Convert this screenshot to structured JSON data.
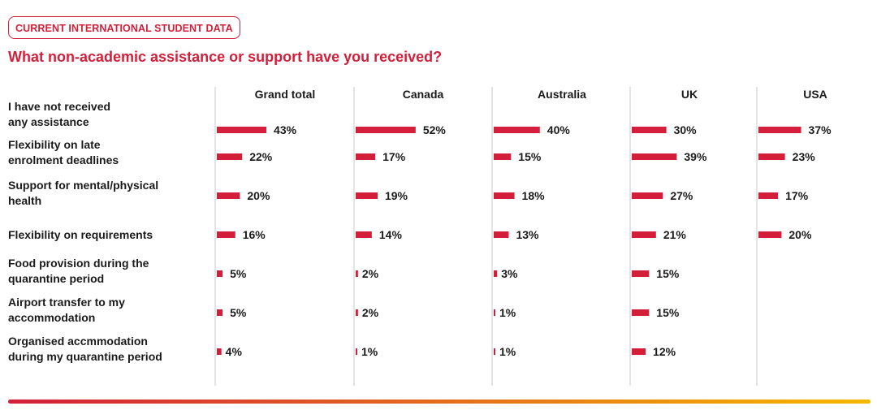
{
  "header": {
    "tag": "CURRENT INTERNATIONAL STUDENT DATA",
    "title": "What non-academic assistance or support have you received?"
  },
  "colors": {
    "accent": "#d31f3a",
    "bar": "#d31f3a",
    "footer_gradient": [
      "#d31f3a",
      "#f5b800"
    ]
  },
  "chart_data": {
    "type": "bar",
    "orientation": "horizontal",
    "title": "What non-academic assistance or support have you received?",
    "categories": [
      [
        "I have not received",
        "any assistance"
      ],
      [
        "Flexibility on late",
        "enrolment deadlines"
      ],
      [
        "Support for mental/physical",
        "health"
      ],
      [
        "Flexibility on requirements"
      ],
      [
        "Food provision during the",
        "quarantine period"
      ],
      [
        "Airport transfer to my",
        "accommodation"
      ],
      [
        "Organised accmmodation",
        "during my quarantine period"
      ]
    ],
    "unit": "%",
    "series": [
      {
        "name": "Grand total",
        "values": [
          43,
          22,
          20,
          16,
          5,
          5,
          4
        ]
      },
      {
        "name": "Canada",
        "values": [
          52,
          17,
          19,
          14,
          2,
          2,
          1
        ]
      },
      {
        "name": "Australia",
        "values": [
          40,
          15,
          18,
          13,
          3,
          1,
          1
        ]
      },
      {
        "name": "UK",
        "values": [
          30,
          39,
          27,
          21,
          15,
          15,
          12
        ]
      },
      {
        "name": "USA",
        "values": [
          37,
          23,
          17,
          20,
          null,
          null,
          null
        ]
      }
    ],
    "xlim": [
      0,
      60
    ],
    "grid": false,
    "legend": "none"
  }
}
